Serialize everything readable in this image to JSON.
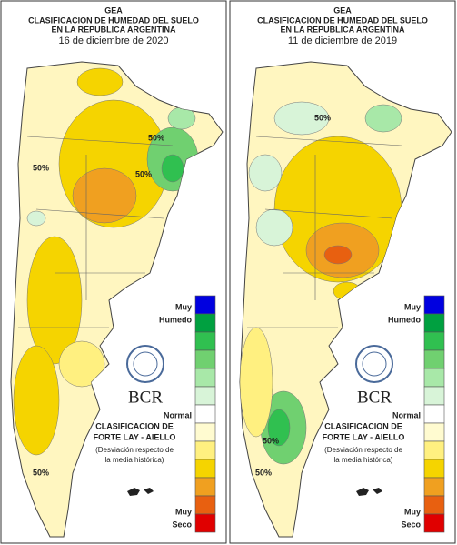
{
  "panels": [
    {
      "header": {
        "org": "GEA",
        "title_lines": [
          "CLASIFICACION DE HUMEDAD DEL SUELO",
          "EN LA REPUBLICA ARGENTINA"
        ],
        "date": "16 de diciembre de 2020"
      },
      "contour_labels": [
        "50%",
        "50%",
        "50%",
        "50%"
      ],
      "legend": {
        "top": [
          "Muy",
          "Humedo"
        ],
        "middle": "Normal",
        "bottom": [
          "Muy",
          "Seco"
        ],
        "colors": [
          "#0000e0",
          "#00a040",
          "#30c050",
          "#70d070",
          "#a8e8a8",
          "#d8f4d8",
          "#ffffff",
          "#fffbd0",
          "#fff080",
          "#f5d400",
          "#f0a020",
          "#e86010",
          "#e00000"
        ]
      },
      "logo": "BCR",
      "method": [
        "CLASIFICACION DE",
        "FORTE LAY - AIELLO"
      ],
      "note": [
        "(Desviación respecto de",
        "la media histórica)"
      ]
    },
    {
      "header": {
        "org": "GEA",
        "title_lines": [
          "CLASIFICACION DE HUMEDAD DEL SUELO",
          "EN LA REPUBLICA ARGENTINA"
        ],
        "date": "11 de diciembre de 2019"
      },
      "contour_labels": [
        "50%",
        "50%",
        "50%"
      ],
      "legend": {
        "top": [
          "Muy",
          "Humedo"
        ],
        "middle": "Normal",
        "bottom": [
          "Muy",
          "Seco"
        ],
        "colors": [
          "#0000e0",
          "#00a040",
          "#30c050",
          "#70d070",
          "#a8e8a8",
          "#d8f4d8",
          "#ffffff",
          "#fffbd0",
          "#fff080",
          "#f5d400",
          "#f0a020",
          "#e86010",
          "#e00000"
        ]
      },
      "logo": "BCR",
      "method": [
        "CLASIFICACION DE",
        "FORTE LAY - AIELLO"
      ],
      "note": [
        "(Desviación respecto de",
        "la media histórica)"
      ]
    }
  ]
}
